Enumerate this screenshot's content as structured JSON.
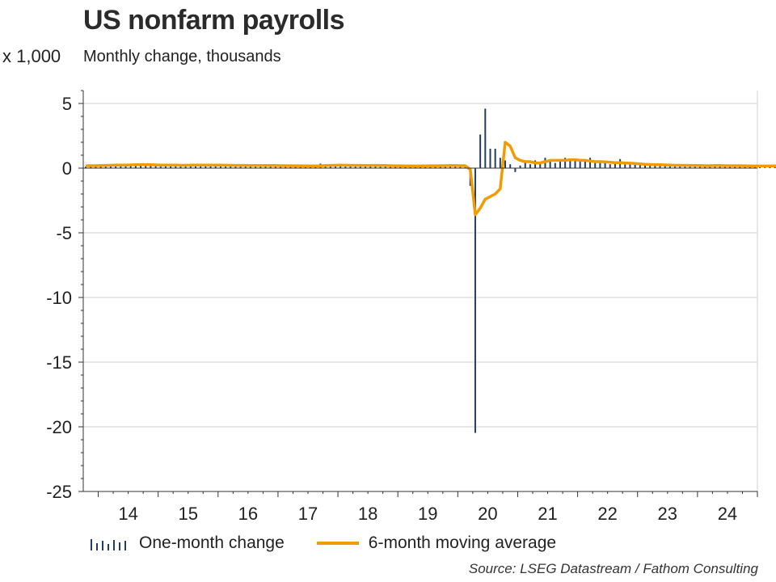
{
  "chart_data": {
    "type": "bar+line",
    "title": "US nonfarm payrolls",
    "subtitle": "Monthly change, thousands",
    "y_units_label": "x 1,000",
    "ylim": [
      -25,
      6
    ],
    "yticks": [
      5,
      0,
      -5,
      -10,
      -15,
      -20,
      -25
    ],
    "x_tick_labels": [
      "14",
      "15",
      "16",
      "17",
      "18",
      "19",
      "20",
      "21",
      "22",
      "23",
      "24"
    ],
    "x_range": [
      2013.75,
      2025.0
    ],
    "grid": "horizontal",
    "legend_placement": "bottom",
    "series": [
      {
        "name": "One-month change",
        "type": "bar",
        "color": "#1f3f66",
        "x_start": 2013.75,
        "x_step_months": 1,
        "values": [
          0.12,
          0.19,
          0.14,
          0.24,
          0.29,
          0.21,
          0.21,
          0.3,
          0.25,
          0.21,
          0.33,
          0.24,
          0.28,
          0.27,
          0.23,
          0.12,
          0.28,
          0.22,
          0.27,
          0.21,
          0.16,
          0.31,
          0.21,
          0.25,
          0.3,
          0.13,
          0.24,
          0.21,
          0.14,
          0.29,
          0.23,
          0.3,
          0.17,
          0.19,
          0.14,
          0.25,
          0.12,
          0.29,
          0.24,
          0.2,
          0.18,
          0.21,
          0.23,
          0.2,
          0.09,
          0.16,
          0.12,
          0.35,
          0.17,
          0.21,
          0.27,
          0.16,
          0.24,
          0.13,
          0.28,
          0.21,
          0.19,
          0.22,
          0.3,
          0.22,
          0.27,
          0.15,
          0.12,
          0.16,
          0.16,
          0.25,
          0.14,
          0.18,
          0.18,
          0.19,
          0.19,
          0.24,
          0.26,
          0.19,
          0.14,
          0.19,
          0.22,
          -1.37,
          -20.47,
          2.6,
          4.6,
          1.5,
          1.5,
          0.8,
          0.6,
          0.3,
          -0.3,
          0.2,
          0.5,
          0.3,
          0.6,
          0.5,
          0.8,
          0.6,
          0.4,
          0.5,
          0.8,
          0.6,
          0.6,
          0.7,
          0.5,
          0.8,
          0.4,
          0.4,
          0.5,
          0.3,
          0.4,
          0.7,
          0.3,
          0.35,
          0.3,
          0.3,
          0.28,
          0.25,
          0.22,
          0.25,
          0.24,
          0.22,
          0.2,
          0.22,
          0.18,
          0.22,
          0.24,
          0.2,
          0.14,
          0.22,
          0.18,
          0.2,
          0.1,
          0.22,
          0.13,
          0.25,
          0.23,
          0.12,
          0.16,
          0.2,
          0.05,
          0.2,
          0.14,
          0.25,
          0.15,
          0.2,
          0.16
        ]
      },
      {
        "name": "6-month moving average",
        "type": "line",
        "color": "#f29b00",
        "x_start": 2013.75,
        "x_step_months": 1,
        "values": [
          0.18,
          0.19,
          0.19,
          0.2,
          0.21,
          0.22,
          0.23,
          0.24,
          0.24,
          0.25,
          0.26,
          0.26,
          0.26,
          0.26,
          0.25,
          0.24,
          0.24,
          0.23,
          0.23,
          0.22,
          0.22,
          0.23,
          0.23,
          0.24,
          0.24,
          0.24,
          0.24,
          0.23,
          0.22,
          0.22,
          0.21,
          0.21,
          0.21,
          0.2,
          0.2,
          0.2,
          0.2,
          0.2,
          0.2,
          0.19,
          0.19,
          0.19,
          0.18,
          0.18,
          0.17,
          0.17,
          0.17,
          0.17,
          0.2,
          0.21,
          0.22,
          0.23,
          0.22,
          0.22,
          0.21,
          0.21,
          0.2,
          0.21,
          0.21,
          0.2,
          0.2,
          0.19,
          0.18,
          0.18,
          0.17,
          0.17,
          0.16,
          0.17,
          0.17,
          0.18,
          0.18,
          0.19,
          0.19,
          0.2,
          0.2,
          0.19,
          0.19,
          -0.1,
          -3.6,
          -3.1,
          -2.4,
          -2.2,
          -2.0,
          -1.6,
          2.0,
          1.7,
          0.8,
          0.6,
          0.5,
          0.5,
          0.4,
          0.4,
          0.5,
          0.6,
          0.6,
          0.6,
          0.6,
          0.65,
          0.65,
          0.6,
          0.6,
          0.55,
          0.5,
          0.5,
          0.48,
          0.45,
          0.42,
          0.42,
          0.4,
          0.38,
          0.36,
          0.33,
          0.3,
          0.28,
          0.27,
          0.26,
          0.25,
          0.24,
          0.22,
          0.22,
          0.21,
          0.21,
          0.2,
          0.2,
          0.19,
          0.19,
          0.2,
          0.2,
          0.19,
          0.19,
          0.19,
          0.19,
          0.18,
          0.17,
          0.16,
          0.16,
          0.16,
          0.16,
          0.17,
          0.17,
          0.16,
          0.16,
          0.16
        ]
      }
    ]
  },
  "legend": {
    "bar_label": "One-month change",
    "line_label": "6-month moving average"
  },
  "source": "Source: LSEG Datastream / Fathom Consulting"
}
